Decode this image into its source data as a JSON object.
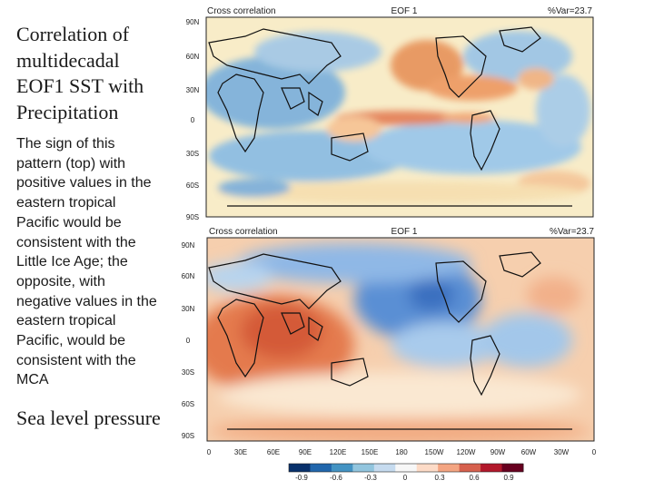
{
  "slide": {
    "title": "Correlation of multidecadal EOF1 SST with Precipitation",
    "body": "The sign of this pattern (top) with positive values in the eastern tropical Pacific would be consistent with the Little Ice Age;  the opposite, with negative values in the eastern tropical Pacific, would be consistent with the MCA",
    "footer": "Sea level pressure"
  },
  "maps": [
    {
      "header_left": "Cross correlation",
      "header_center": "EOF 1",
      "header_right": "%Var=23.7",
      "lat_labels": [
        "90N",
        "60N",
        "30N",
        "0",
        "30S",
        "60S",
        "90S"
      ]
    },
    {
      "header_left": "Cross correlation",
      "header_center": "EOF 1",
      "header_right": "%Var=23.7",
      "lat_labels": [
        "90N",
        "60N",
        "30N",
        "0",
        "30S",
        "60S",
        "90S"
      ],
      "lon_labels": [
        "0",
        "30E",
        "60E",
        "90E",
        "120E",
        "150E",
        "180",
        "150W",
        "120W",
        "90W",
        "60W",
        "30W",
        "0"
      ]
    }
  ],
  "colorbar": {
    "labels": [
      "-0.9",
      "-0.6",
      "-0.3",
      "0",
      "0.3",
      "0.6",
      "0.9"
    ],
    "colors": [
      "#08306b",
      "#2166ac",
      "#4393c3",
      "#92c5de",
      "#c6dbef",
      "#f7f7f7",
      "#fddbc7",
      "#f4a582",
      "#d6604d",
      "#b2182b",
      "#67001f"
    ]
  }
}
